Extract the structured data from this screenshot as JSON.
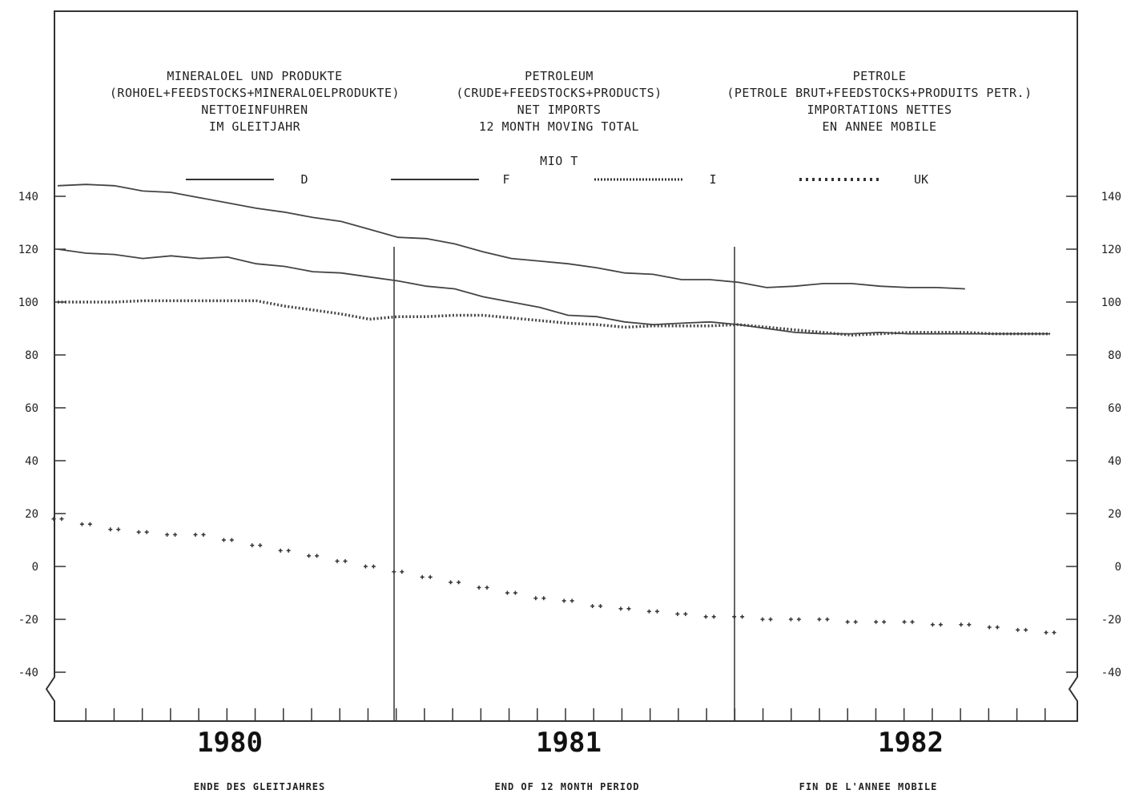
{
  "chart_data": {
    "type": "line",
    "title_columns": [
      [
        "MINERALOEL UND PRODUKTE",
        "(ROHOEL+FEEDSTOCKS+MINERALOELPRODUKTE)",
        "NETTOEINFUHREN",
        "IM GLEITJAHR"
      ],
      [
        "PETROLEUM",
        "(CRUDE+FEEDSTOCKS+PRODUCTS)",
        "NET IMPORTS",
        "12 MONTH MOVING TOTAL"
      ],
      [
        "PETROLE",
        "(PETROLE BRUT+FEEDSTOCKS+PRODUITS PETR.)",
        "IMPORTATIONS NETTES",
        "EN ANNEE MOBILE"
      ]
    ],
    "unit": "MIO T",
    "yticks": [
      140,
      120,
      100,
      80,
      60,
      40,
      20,
      0,
      -20,
      -40
    ],
    "ytick_labels": [
      "140",
      "120",
      "100",
      "80",
      "60",
      "40",
      "20",
      "0",
      "-20",
      "-40"
    ],
    "ylim": [
      -60,
      150
    ],
    "year_labels": [
      "1980",
      "1981",
      "1982"
    ],
    "footer_labels": [
      "ENDE DES GLEITJAHRES",
      "END OF 12 MONTH PERIOD",
      "FIN DE L'ANNEE MOBILE"
    ],
    "x_months": [
      1,
      2,
      3,
      4,
      5,
      6,
      7,
      8,
      9,
      10,
      11,
      12,
      13,
      14,
      15,
      16,
      17,
      18,
      19,
      20,
      21,
      22,
      23,
      24,
      25,
      26,
      27,
      28,
      29,
      30,
      31,
      32,
      33,
      34,
      35,
      36
    ],
    "series": [
      {
        "name": "D",
        "style": "solid",
        "values": [
          144,
          144.5,
          144,
          142,
          141.5,
          139.5,
          137.5,
          135.5,
          134,
          132,
          130.5,
          127.5,
          124.5,
          124,
          122,
          119,
          116.5,
          115.5,
          114.5,
          113,
          111,
          110.5,
          108.5,
          108.5,
          107.5,
          105.5,
          106,
          107,
          107,
          106,
          105.5,
          105.5,
          105
        ]
      },
      {
        "name": "F",
        "style": "solid",
        "values": [
          120,
          118.5,
          118,
          116.5,
          117.5,
          116.5,
          117,
          114.5,
          113.5,
          111.5,
          111,
          109.5,
          108,
          106,
          105,
          102,
          100,
          98,
          95,
          94.5,
          92.5,
          91.5,
          92,
          92.5,
          91.5,
          90,
          88.5,
          88,
          88,
          88.5,
          88,
          88,
          88,
          88,
          88,
          88
        ]
      },
      {
        "name": "I",
        "style": "dotted",
        "values": [
          100,
          100,
          100,
          100.5,
          100.5,
          100.5,
          100.5,
          100.5,
          98.5,
          97,
          95.5,
          93.5,
          94.5,
          94.5,
          95,
          95,
          94,
          93,
          92,
          91.5,
          90.5,
          91,
          91,
          91,
          91.5,
          90.5,
          89.5,
          88.5,
          87.5,
          88,
          88.5,
          88.5,
          88.5,
          88,
          88,
          88
        ]
      },
      {
        "name": "UK",
        "style": "dashed-cross",
        "values": [
          18,
          16,
          14,
          13,
          12,
          12,
          10,
          8,
          6,
          4,
          2,
          0,
          -2,
          -4,
          -6,
          -8,
          -10,
          -12,
          -13,
          -15,
          -16,
          -17,
          -18,
          -19,
          -19,
          -20,
          -20,
          -20,
          -21,
          -21,
          -21,
          -22,
          -22,
          -23,
          -24,
          -25
        ]
      }
    ],
    "legend": "top-center",
    "grid": false
  }
}
